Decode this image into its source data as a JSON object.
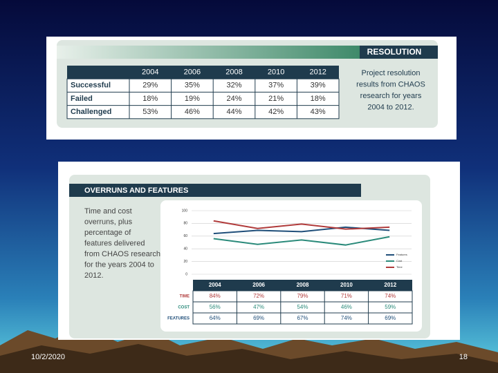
{
  "slide": {
    "date": "10/2/2020",
    "page": "18"
  },
  "resolution": {
    "title": "RESOLUTION",
    "columns": [
      "2004",
      "2006",
      "2008",
      "2010",
      "2012"
    ],
    "rows": [
      {
        "label": "Successful",
        "cells": [
          "29%",
          "35%",
          "32%",
          "37%",
          "39%"
        ]
      },
      {
        "label": "Failed",
        "cells": [
          "18%",
          "19%",
          "24%",
          "21%",
          "18%"
        ]
      },
      {
        "label": "Challenged",
        "cells": [
          "53%",
          "46%",
          "44%",
          "42%",
          "43%"
        ]
      }
    ],
    "caption": [
      "Project resolution",
      "results from CHAOS",
      "research for years",
      "2004 to 2012."
    ]
  },
  "overruns": {
    "title": "OVERRUNS AND FEATURES",
    "caption": [
      "Time and cost",
      "overruns, plus",
      "percentage of",
      "features delivered",
      "from CHAOS research",
      "for the years 2004 to",
      "2012."
    ],
    "columns": [
      "2004",
      "2006",
      "2008",
      "2010",
      "2012"
    ],
    "rows": [
      {
        "label": "TIME",
        "cells": [
          "84%",
          "72%",
          "79%",
          "71%",
          "74%"
        ]
      },
      {
        "label": "COST",
        "cells": [
          "56%",
          "47%",
          "54%",
          "46%",
          "59%"
        ]
      },
      {
        "label": "FEATURES",
        "cells": [
          "64%",
          "69%",
          "67%",
          "74%",
          "69%"
        ]
      }
    ]
  },
  "chart_data": {
    "type": "line",
    "categories": [
      null,
      null,
      null,
      null,
      null
    ],
    "series": [
      {
        "name": "Features",
        "color": "#1f4e79",
        "values": [
          64,
          69,
          67,
          74,
          69
        ]
      },
      {
        "name": "Cost",
        "color": "#2a8a7a",
        "values": [
          56,
          47,
          54,
          46,
          59
        ]
      },
      {
        "name": "Time",
        "color": "#b03a3a",
        "values": [
          84,
          72,
          79,
          71,
          74
        ]
      }
    ],
    "ylim": [
      0,
      100
    ],
    "yticks": [
      0,
      20,
      40,
      60,
      80,
      100
    ],
    "grid": true
  }
}
